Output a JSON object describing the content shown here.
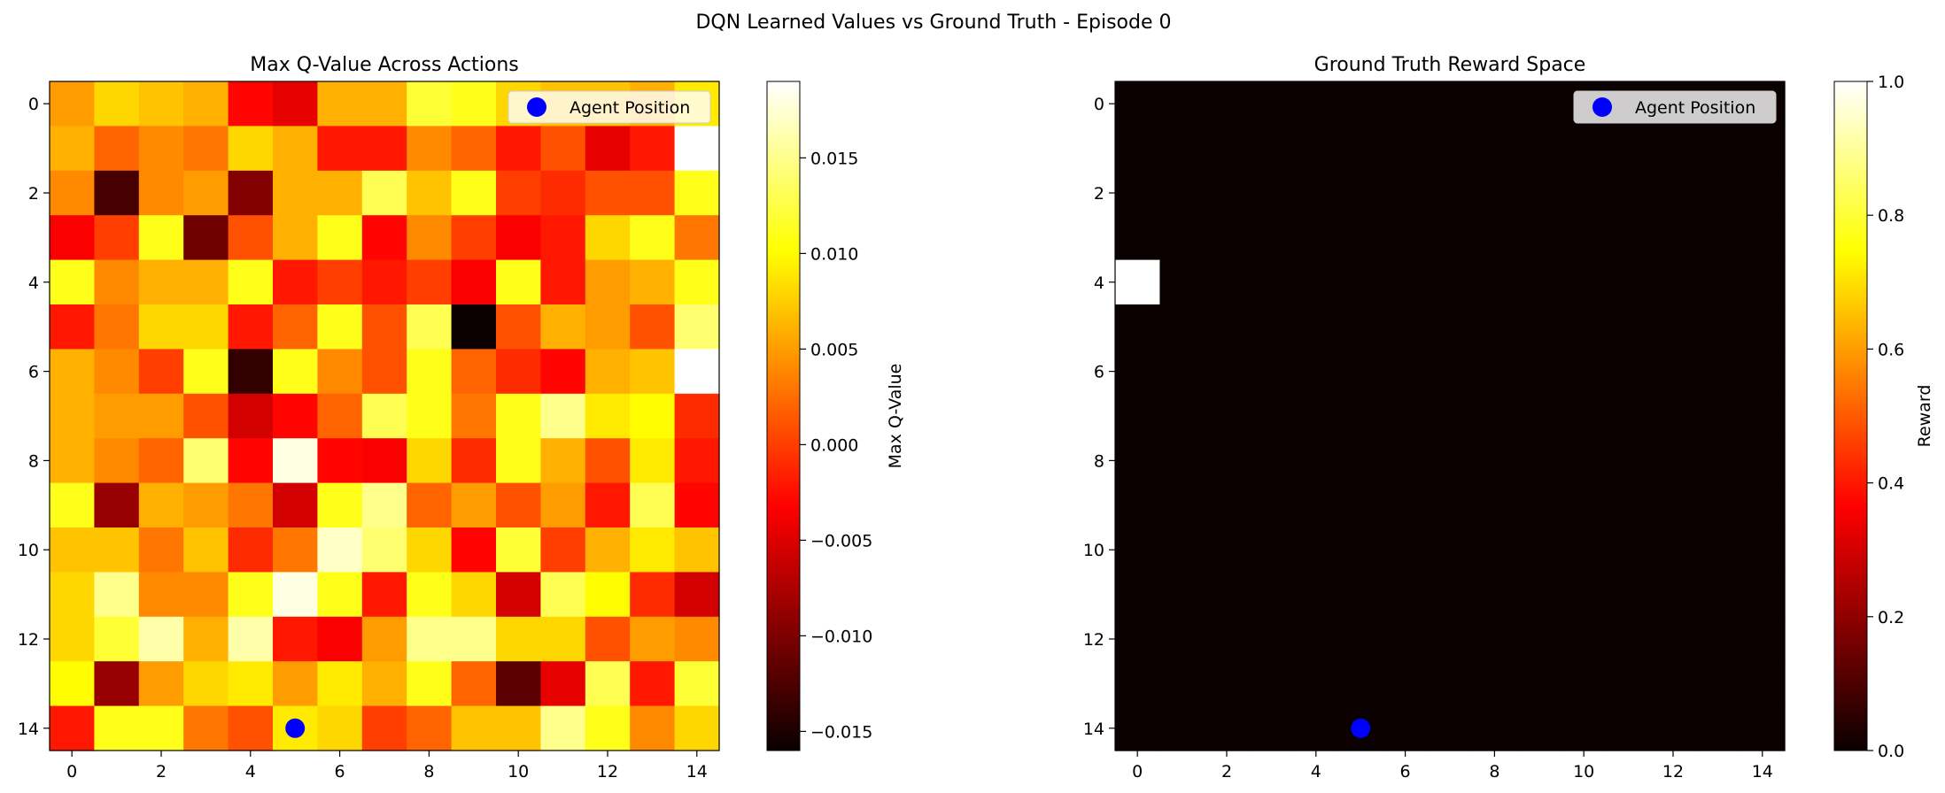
{
  "suptitle": "DQN Learned Values vs Ground Truth - Episode 0",
  "chart_data": [
    {
      "type": "heatmap",
      "title": "Max Q-Value Across Actions",
      "colormap": "hot",
      "xlim": [
        -0.5,
        14.5
      ],
      "ylim": [
        14.5,
        -0.5
      ],
      "xticks": [
        "0",
        "2",
        "4",
        "6",
        "8",
        "10",
        "12",
        "14"
      ],
      "yticks": [
        "0",
        "2",
        "4",
        "6",
        "8",
        "10",
        "12",
        "14"
      ],
      "colorbar": {
        "label": "Max Q-Value",
        "min": -0.016,
        "max": 0.019,
        "ticks": [
          0.015,
          0.01,
          0.005,
          0.0,
          -0.005,
          -0.01,
          -0.015
        ],
        "tick_labels": [
          "0.015",
          "0.010",
          "0.005",
          "0.000",
          "−0.005",
          "−0.010",
          "−0.015"
        ]
      },
      "agent": {
        "x": 5,
        "y": 14,
        "color": "#0000ff"
      },
      "legend": {
        "label": "Agent Position",
        "location": "upper right"
      },
      "values": [
        [
          0.005,
          0.008,
          0.007,
          0.006,
          -0.003,
          -0.005,
          0.006,
          0.006,
          0.012,
          0.011,
          0.008,
          0.007,
          0.007,
          0.006,
          0.009
        ],
        [
          0.006,
          0.002,
          0.004,
          0.003,
          0.008,
          0.006,
          -0.002,
          -0.002,
          0.004,
          0.002,
          -0.002,
          0.001,
          -0.005,
          -0.002,
          0.019
        ],
        [
          0.004,
          -0.013,
          0.004,
          0.005,
          -0.01,
          0.006,
          0.006,
          0.013,
          0.007,
          0.011,
          0.0,
          -0.001,
          0.001,
          0.001,
          0.011
        ],
        [
          -0.004,
          0.0,
          0.011,
          -0.011,
          0.001,
          0.006,
          0.011,
          -0.003,
          0.004,
          0.0,
          -0.004,
          -0.002,
          0.008,
          0.011,
          0.003
        ],
        [
          0.011,
          0.004,
          0.006,
          0.006,
          0.011,
          -0.002,
          0.0,
          -0.002,
          0.0,
          -0.004,
          0.011,
          -0.002,
          0.005,
          0.006,
          0.011
        ],
        [
          -0.002,
          0.003,
          0.008,
          0.008,
          -0.002,
          0.002,
          0.011,
          0.001,
          0.013,
          -0.016,
          0.001,
          0.006,
          0.005,
          0.001,
          0.014
        ],
        [
          0.006,
          0.004,
          0.0,
          0.011,
          -0.014,
          0.011,
          0.004,
          0.001,
          0.011,
          0.002,
          -0.001,
          -0.003,
          0.006,
          0.007,
          0.019
        ],
        [
          0.006,
          0.005,
          0.005,
          0.001,
          -0.006,
          -0.003,
          0.002,
          0.013,
          0.011,
          0.003,
          0.011,
          0.015,
          0.009,
          0.01,
          -0.001
        ],
        [
          0.006,
          0.004,
          0.002,
          0.014,
          -0.003,
          0.018,
          -0.003,
          -0.004,
          0.008,
          -0.001,
          0.011,
          0.006,
          0.001,
          0.009,
          -0.002
        ],
        [
          0.011,
          -0.009,
          0.006,
          0.005,
          0.003,
          -0.006,
          0.011,
          0.015,
          0.002,
          0.005,
          0.001,
          0.005,
          -0.002,
          0.013,
          -0.003
        ],
        [
          0.007,
          0.007,
          0.003,
          0.007,
          -0.001,
          0.003,
          0.017,
          0.014,
          0.008,
          -0.003,
          0.012,
          0.0,
          0.006,
          0.009,
          0.007
        ],
        [
          0.008,
          0.015,
          0.004,
          0.004,
          0.011,
          0.018,
          0.011,
          -0.002,
          0.011,
          0.008,
          -0.006,
          0.013,
          0.01,
          -0.001,
          -0.006
        ],
        [
          0.008,
          0.012,
          0.016,
          0.006,
          0.016,
          -0.002,
          -0.004,
          0.005,
          0.015,
          0.015,
          0.008,
          0.008,
          0.001,
          0.005,
          0.004
        ],
        [
          0.01,
          -0.009,
          0.005,
          0.008,
          0.009,
          0.005,
          0.009,
          0.006,
          0.011,
          0.002,
          -0.012,
          -0.005,
          0.013,
          -0.002,
          0.012
        ],
        [
          -0.002,
          0.011,
          0.011,
          0.003,
          0.001,
          0.009,
          0.008,
          0.0,
          0.002,
          0.007,
          0.007,
          0.015,
          0.011,
          0.004,
          0.008
        ]
      ]
    },
    {
      "type": "heatmap",
      "title": "Ground Truth Reward Space",
      "colormap": "hot",
      "xlim": [
        -0.5,
        14.5
      ],
      "ylim": [
        14.5,
        -0.5
      ],
      "xticks": [
        "0",
        "2",
        "4",
        "6",
        "8",
        "10",
        "12",
        "14"
      ],
      "yticks": [
        "0",
        "2",
        "4",
        "6",
        "8",
        "10",
        "12",
        "14"
      ],
      "colorbar": {
        "label": "Reward",
        "min": 0.0,
        "max": 1.0,
        "ticks": [
          1.0,
          0.8,
          0.6,
          0.4,
          0.2,
          0.0
        ],
        "tick_labels": [
          "1.0",
          "0.8",
          "0.6",
          "0.4",
          "0.2",
          "0.0"
        ]
      },
      "agent": {
        "x": 5,
        "y": 14,
        "color": "#0000ff"
      },
      "legend": {
        "label": "Agent Position",
        "location": "upper right"
      },
      "values": [
        [
          0,
          0,
          0,
          0,
          0,
          0,
          0,
          0,
          0,
          0,
          0,
          0,
          0,
          0,
          0
        ],
        [
          0,
          0,
          0,
          0,
          0,
          0,
          0,
          0,
          0,
          0,
          0,
          0,
          0,
          0,
          0
        ],
        [
          0,
          0,
          0,
          0,
          0,
          0,
          0,
          0,
          0,
          0,
          0,
          0,
          0,
          0,
          0
        ],
        [
          0,
          0,
          0,
          0,
          0,
          0,
          0,
          0,
          0,
          0,
          0,
          0,
          0,
          0,
          0
        ],
        [
          1,
          0,
          0,
          0,
          0,
          0,
          0,
          0,
          0,
          0,
          0,
          0,
          0,
          0,
          0
        ],
        [
          0,
          0,
          0,
          0,
          0,
          0,
          0,
          0,
          0,
          0,
          0,
          0,
          0,
          0,
          0
        ],
        [
          0,
          0,
          0,
          0,
          0,
          0,
          0,
          0,
          0,
          0,
          0,
          0,
          0,
          0,
          0
        ],
        [
          0,
          0,
          0,
          0,
          0,
          0,
          0,
          0,
          0,
          0,
          0,
          0,
          0,
          0,
          0
        ],
        [
          0,
          0,
          0,
          0,
          0,
          0,
          0,
          0,
          0,
          0,
          0,
          0,
          0,
          0,
          0
        ],
        [
          0,
          0,
          0,
          0,
          0,
          0,
          0,
          0,
          0,
          0,
          0,
          0,
          0,
          0,
          0
        ],
        [
          0,
          0,
          0,
          0,
          0,
          0,
          0,
          0,
          0,
          0,
          0,
          0,
          0,
          0,
          0
        ],
        [
          0,
          0,
          0,
          0,
          0,
          0,
          0,
          0,
          0,
          0,
          0,
          0,
          0,
          0,
          0
        ],
        [
          0,
          0,
          0,
          0,
          0,
          0,
          0,
          0,
          0,
          0,
          0,
          0,
          0,
          0,
          0
        ],
        [
          0,
          0,
          0,
          0,
          0,
          0,
          0,
          0,
          0,
          0,
          0,
          0,
          0,
          0,
          0
        ],
        [
          0,
          0,
          0,
          0,
          0,
          0,
          0,
          0,
          0,
          0,
          0,
          0,
          0,
          0,
          0
        ]
      ]
    }
  ]
}
